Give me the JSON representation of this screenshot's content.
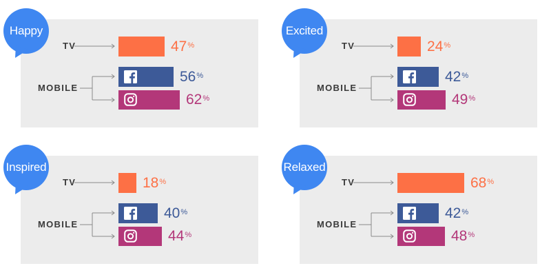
{
  "colors": {
    "tv": "#fd7045",
    "facebook": "#3d5a98",
    "instagram": "#b33779",
    "bubble": "#3f87f1",
    "panel": "#ececec",
    "label": "#3a3a3a"
  },
  "labels": {
    "tv": "TV",
    "mobile": "MOBILE"
  },
  "icons": {
    "facebook": "facebook-logo-icon",
    "instagram": "instagram-logo-icon",
    "bubble": "speech-bubble-icon"
  },
  "chart_data": [
    {
      "type": "bar",
      "title": "Happy",
      "categories": [
        "TV",
        "Facebook",
        "Instagram"
      ],
      "values": [
        47,
        56,
        62
      ],
      "value_labels": [
        "47",
        "56",
        "62"
      ],
      "unit": "%"
    },
    {
      "type": "bar",
      "title": "Excited",
      "categories": [
        "TV",
        "Facebook",
        "Instagram"
      ],
      "values": [
        24,
        42,
        49
      ],
      "value_labels": [
        "24",
        "42",
        "49"
      ],
      "unit": "%"
    },
    {
      "type": "bar",
      "title": "Inspired",
      "categories": [
        "TV",
        "Facebook",
        "Instagram"
      ],
      "values": [
        18,
        40,
        44
      ],
      "value_labels": [
        "18",
        "40",
        "44"
      ],
      "unit": "%"
    },
    {
      "type": "bar",
      "title": "Relaxed",
      "categories": [
        "TV",
        "Facebook",
        "Instagram"
      ],
      "values": [
        68,
        42,
        48
      ],
      "value_labels": [
        "68",
        "42",
        "48"
      ],
      "unit": "%"
    }
  ]
}
